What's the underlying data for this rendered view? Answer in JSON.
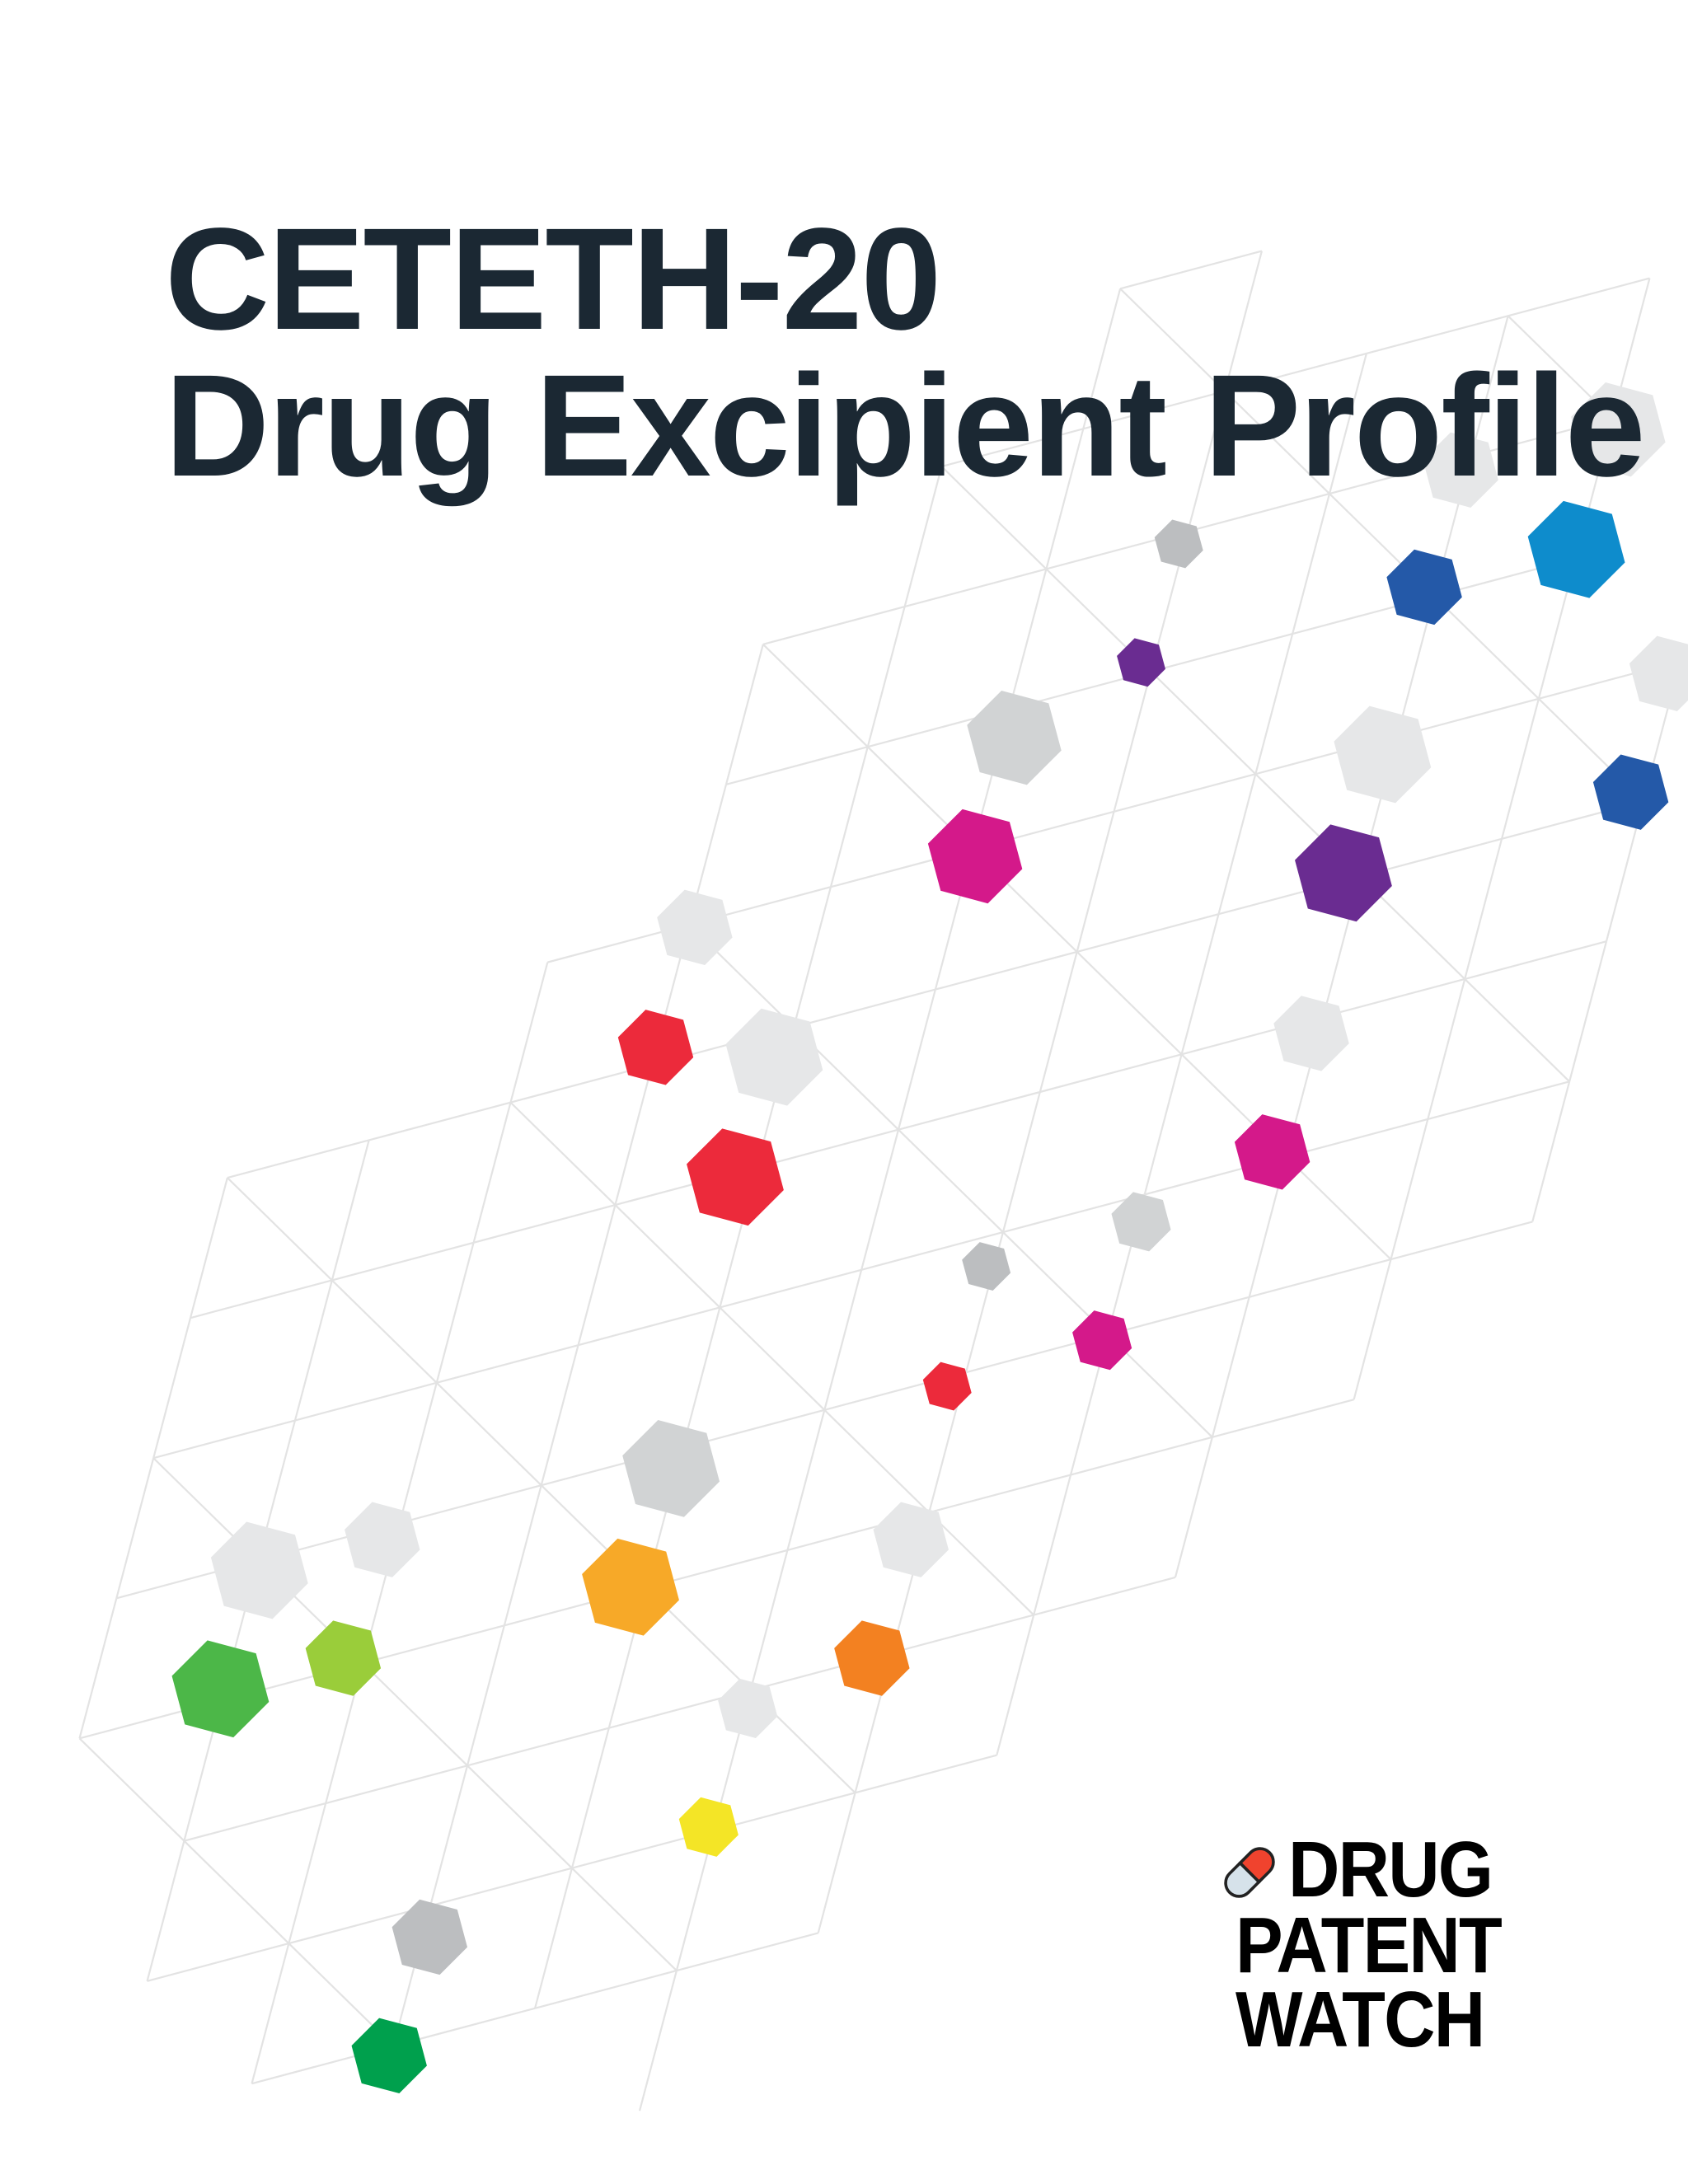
{
  "document": {
    "title_line1": "CETETH-20",
    "title_line2": "Drug Excipient Profile",
    "title_color": "#1b2833"
  },
  "logo": {
    "line1": "DRUG",
    "line2": "PATENT",
    "line3": "WATCH",
    "icon": "capsule-icon",
    "capsule_colors": [
      "#f0432e",
      "#d6e2ea"
    ]
  },
  "background": {
    "pattern": "hexagon-lattice",
    "hexagon_colors": [
      "#e6e7e8",
      "#d1d3d4",
      "#bcbec0",
      "#2459a8",
      "#0e8ccc",
      "#6a2c91",
      "#d4198a",
      "#ec2a3b",
      "#f7a928",
      "#4cb748",
      "#9acd3a",
      "#f38121",
      "#f4e526",
      "#00a04d"
    ]
  }
}
